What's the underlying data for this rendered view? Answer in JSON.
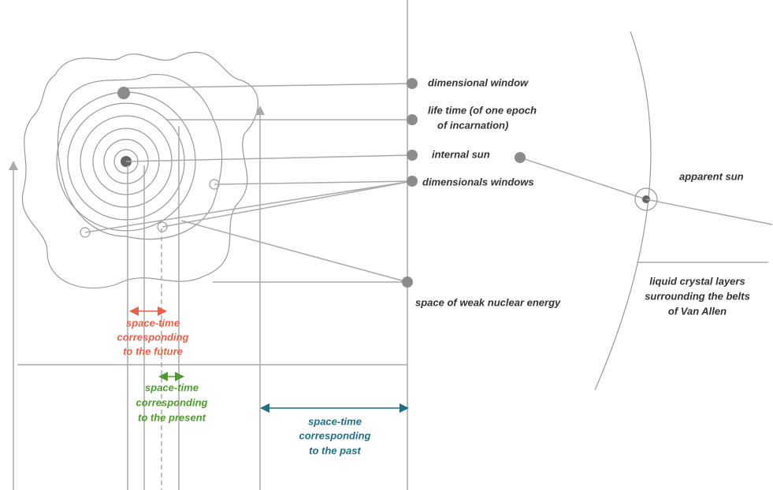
{
  "labels": [
    {
      "lines": [
        "dimensional window"
      ]
    },
    {
      "lines": [
        "life time (of one epoch",
        "of incarnation)"
      ]
    },
    {
      "lines": [
        "internal sun"
      ]
    },
    {
      "lines": [
        "dimensionals windows"
      ]
    },
    {
      "lines": [
        "space of weak nuclear energy"
      ]
    },
    {
      "lines": [
        "apparent sun"
      ]
    },
    {
      "lines": [
        "liquid crystal layers",
        "surrounding the belts",
        "of Van Allen"
      ]
    },
    {
      "lines": [
        "space-time",
        "corresponding",
        "to the future"
      ]
    },
    {
      "lines": [
        "space-time",
        "corresponding",
        "to the present"
      ]
    },
    {
      "lines": [
        "space-time",
        "corresponding",
        "to the past"
      ]
    }
  ]
}
